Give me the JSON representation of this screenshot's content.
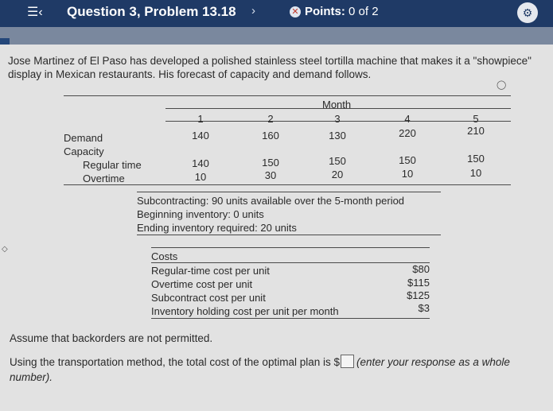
{
  "header": {
    "title": "Question 3, Problem 13.18",
    "points_label": "Points:",
    "points_value": "0 of 2"
  },
  "problem": {
    "intro": "Jose Martinez of El Paso has developed a polished stainless steel tortilla machine that makes it a \"showpiece\" display in Mexican restaurants. His forecast of capacity and demand follows.",
    "table": {
      "month_header": "Month",
      "months": [
        "1",
        "2",
        "3",
        "4",
        "5"
      ],
      "demand_label": "Demand",
      "demand": [
        "140",
        "160",
        "130",
        "220",
        "210"
      ],
      "capacity_label": "Capacity",
      "regular_label": "Regular time",
      "regular": [
        "140",
        "150",
        "150",
        "150",
        "150"
      ],
      "overtime_label": "Overtime",
      "overtime": [
        "10",
        "30",
        "20",
        "10",
        "10"
      ]
    },
    "subcontracting": "Subcontracting: 90 units available over the 5-month period",
    "beginning_inventory": "Beginning inventory: 0 units",
    "ending_inventory": "Ending inventory required: 20 units",
    "costs": {
      "header": "Costs",
      "rows": [
        {
          "label": "Regular-time cost per unit",
          "value": "$80"
        },
        {
          "label": "Overtime cost per unit",
          "value": "$115"
        },
        {
          "label": "Subcontract cost per unit",
          "value": "$125"
        },
        {
          "label": "Inventory holding cost per unit per month",
          "value": "$3"
        }
      ]
    },
    "assumption": "Assume that backorders are not permitted.",
    "question_before": "Using the transportation method, the total cost of the optimal plan is $",
    "question_after": "(enter your response as a whole number)."
  }
}
